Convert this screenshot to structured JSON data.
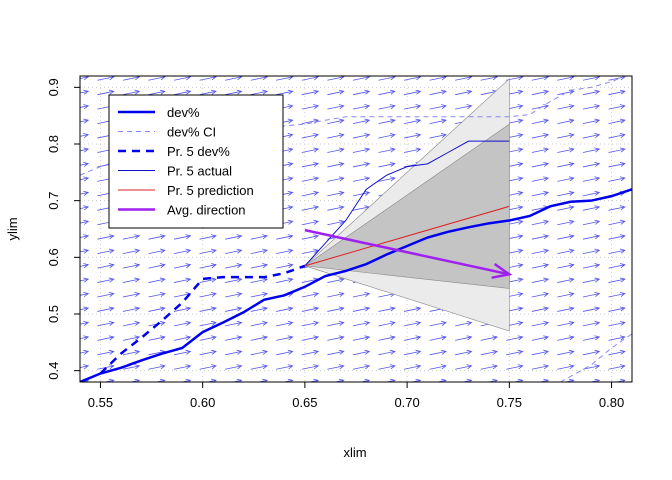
{
  "chart_data": {
    "type": "line",
    "title": "",
    "xlabel": "xlim",
    "ylabel": "ylim",
    "xlim": [
      0.54,
      0.81
    ],
    "ylim": [
      0.38,
      0.92
    ],
    "xticks": [
      0.55,
      0.6,
      0.65,
      0.7,
      0.75,
      0.8
    ],
    "yticks": [
      0.4,
      0.5,
      0.6,
      0.7,
      0.8,
      0.9
    ],
    "xtick_labels": [
      "0.55",
      "0.60",
      "0.65",
      "0.70",
      "0.75",
      "0.80"
    ],
    "ytick_labels": [
      "0.4",
      "0.5",
      "0.6",
      "0.7",
      "0.8",
      "0.9"
    ],
    "grid": true,
    "legend_position": "top-left",
    "vector_field": {
      "color": "#5555ee",
      "dx": 0.008,
      "dy": 0.006
    },
    "bands": [
      {
        "name": "outer",
        "color": "#ebebeb",
        "x": [
          0.65,
          0.75
        ],
        "upper": [
          0.585,
          0.915
        ],
        "lower": [
          0.585,
          0.47
        ]
      },
      {
        "name": "inner",
        "color": "#c4c4c4",
        "x": [
          0.65,
          0.75
        ],
        "upper": [
          0.585,
          0.835
        ],
        "lower": [
          0.585,
          0.545
        ]
      }
    ],
    "series": [
      {
        "name": "dev%",
        "color": "#0000ee",
        "width": 2.5,
        "dash": "",
        "x": [
          0.54,
          0.55,
          0.56,
          0.57,
          0.58,
          0.59,
          0.6,
          0.61,
          0.62,
          0.63,
          0.64,
          0.65,
          0.66,
          0.67,
          0.68,
          0.69,
          0.7,
          0.71,
          0.72,
          0.73,
          0.74,
          0.75,
          0.76,
          0.77,
          0.78,
          0.79,
          0.8,
          0.81
        ],
        "y": [
          0.38,
          0.395,
          0.405,
          0.418,
          0.43,
          0.44,
          0.468,
          0.485,
          0.503,
          0.525,
          0.533,
          0.548,
          0.567,
          0.576,
          0.588,
          0.605,
          0.62,
          0.635,
          0.645,
          0.653,
          0.66,
          0.665,
          0.673,
          0.69,
          0.698,
          0.7,
          0.708,
          0.72
        ]
      },
      {
        "name": "dev% CI",
        "color": "#8888ee",
        "width": 1,
        "dash": "5,4",
        "segments": [
          {
            "x": [
              0.54,
              0.55,
              0.56,
              0.57,
              0.58,
              0.59,
              0.6,
              0.61,
              0.62,
              0.63,
              0.64,
              0.65,
              0.66,
              0.67,
              0.68,
              0.69,
              0.7,
              0.71,
              0.72,
              0.73,
              0.74,
              0.75,
              0.76,
              0.77,
              0.78,
              0.79,
              0.8,
              0.81
            ],
            "y": [
              0.745,
              0.76,
              0.772,
              0.785,
              0.795,
              0.8,
              0.81,
              0.815,
              0.82,
              0.826,
              0.832,
              0.835,
              0.842,
              0.848,
              0.848,
              0.848,
              0.848,
              0.848,
              0.848,
              0.848,
              0.848,
              0.848,
              0.852,
              0.875,
              0.895,
              0.9,
              0.91,
              0.925
            ]
          },
          {
            "x": [
              0.775,
              0.79,
              0.8,
              0.81
            ],
            "y": [
              0.38,
              0.41,
              0.44,
              0.465
            ]
          }
        ]
      },
      {
        "name": "Pr. 5 dev%",
        "color": "#0000ee",
        "width": 2.5,
        "dash": "8,6",
        "x": [
          0.55,
          0.56,
          0.57,
          0.58,
          0.59,
          0.6,
          0.61,
          0.62,
          0.63,
          0.64,
          0.65
        ],
        "y": [
          0.395,
          0.43,
          0.458,
          0.488,
          0.52,
          0.562,
          0.565,
          0.565,
          0.565,
          0.572,
          0.585
        ]
      },
      {
        "name": "Pr. 5 actual",
        "color": "#1010cc",
        "width": 1,
        "dash": "",
        "x": [
          0.65,
          0.66,
          0.67,
          0.68,
          0.69,
          0.7,
          0.71,
          0.72,
          0.73,
          0.74,
          0.75
        ],
        "y": [
          0.585,
          0.625,
          0.665,
          0.72,
          0.745,
          0.76,
          0.765,
          0.785,
          0.805,
          0.805,
          0.805
        ]
      },
      {
        "name": "Pr. 5 prediction",
        "color": "#dd2222",
        "width": 1,
        "dash": "",
        "x": [
          0.65,
          0.75
        ],
        "y": [
          0.585,
          0.69
        ]
      },
      {
        "name": "Avg. direction",
        "color": "#a020f0",
        "width": 2.5,
        "dash": "",
        "arrow": true,
        "x": [
          0.65,
          0.75
        ],
        "y": [
          0.648,
          0.57
        ]
      }
    ]
  }
}
